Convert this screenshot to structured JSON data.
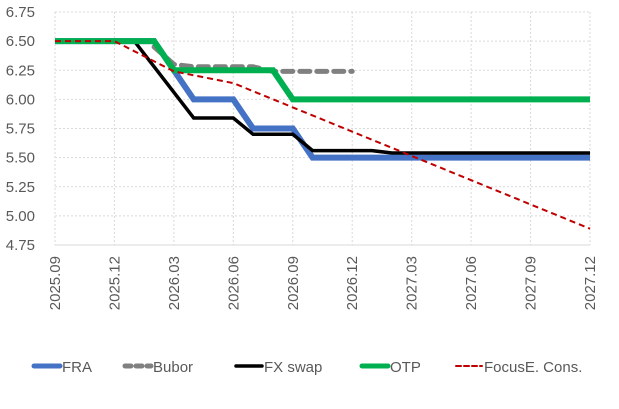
{
  "chart_data": {
    "type": "line",
    "title": "",
    "xlabel": "",
    "ylabel": "",
    "x_ticks": [
      "2025.09",
      "2025.12",
      "2026.03",
      "2026.06",
      "2026.09",
      "2026.12",
      "2027.03",
      "2027.06",
      "2027.09",
      "2027.12"
    ],
    "y_ticks": [
      "6.75",
      "6.50",
      "6.25",
      "6.00",
      "5.75",
      "5.50",
      "5.25",
      "5.00",
      "4.75"
    ],
    "xlim": [
      "2025.09",
      "2027.12"
    ],
    "ylim": [
      4.75,
      6.75
    ],
    "grid": true,
    "legend_position": "bottom",
    "series": [
      {
        "name": "FRA",
        "color": "#4472C4",
        "style": "solid-thick",
        "points": [
          [
            "2025.09",
            6.5
          ],
          [
            "2026.02",
            6.5
          ],
          [
            "2026.03",
            6.25
          ],
          [
            "2026.04",
            6.0
          ],
          [
            "2026.06",
            6.0
          ],
          [
            "2026.07",
            5.75
          ],
          [
            "2026.09",
            5.75
          ],
          [
            "2026.10",
            5.5
          ],
          [
            "2027.12",
            5.5
          ]
        ]
      },
      {
        "name": "Bubor",
        "color": "#808080",
        "style": "dashed-thick",
        "points": [
          [
            "2026.02",
            6.45
          ],
          [
            "2026.03",
            6.3
          ],
          [
            "2026.04",
            6.28
          ],
          [
            "2026.07",
            6.28
          ],
          [
            "2026.08",
            6.24
          ],
          [
            "2026.12",
            6.24
          ]
        ]
      },
      {
        "name": "FX swap",
        "color": "#000000",
        "style": "solid",
        "points": [
          [
            "2025.09",
            6.5
          ],
          [
            "2026.01",
            6.5
          ],
          [
            "2026.04",
            5.84
          ],
          [
            "2026.06",
            5.84
          ],
          [
            "2026.07",
            5.7
          ],
          [
            "2026.09",
            5.7
          ],
          [
            "2026.10",
            5.56
          ],
          [
            "2027.01",
            5.56
          ],
          [
            "2027.02",
            5.54
          ],
          [
            "2027.12",
            5.54
          ]
        ]
      },
      {
        "name": "OTP",
        "color": "#00B050",
        "style": "solid-thick",
        "points": [
          [
            "2025.09",
            6.5
          ],
          [
            "2026.02",
            6.5
          ],
          [
            "2026.03",
            6.25
          ],
          [
            "2026.08",
            6.25
          ],
          [
            "2026.09",
            6.0
          ],
          [
            "2027.12",
            6.0
          ]
        ]
      },
      {
        "name": "FocusE. Cons.",
        "color": "#C00000",
        "style": "dashed-thin",
        "points": [
          [
            "2025.09",
            6.5
          ],
          [
            "2025.12",
            6.5
          ],
          [
            "2026.03",
            6.24
          ],
          [
            "2026.06",
            6.14
          ],
          [
            "2027.12",
            4.89
          ]
        ]
      }
    ]
  }
}
